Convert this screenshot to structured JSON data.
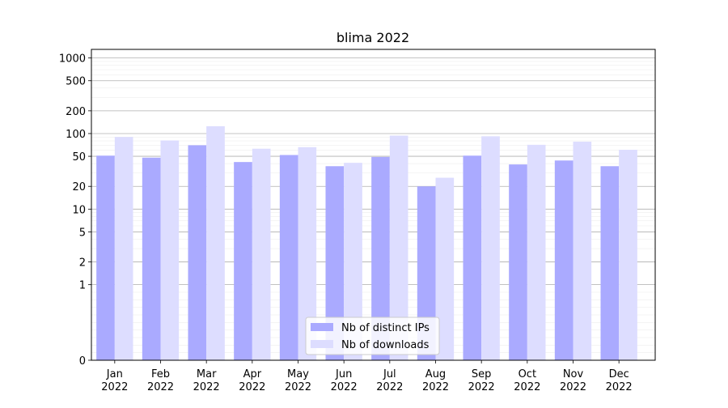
{
  "chart_data": {
    "type": "bar",
    "title": "blima 2022",
    "xlabel": "",
    "ylabel": "",
    "y_scale": "symlog",
    "ylim": [
      0,
      1300
    ],
    "y_ticks": [
      0,
      1,
      2,
      5,
      10,
      20,
      50,
      100,
      200,
      500,
      1000
    ],
    "y_tick_labels": [
      "0",
      "1",
      "2",
      "5",
      "10",
      "20",
      "50",
      "100",
      "200",
      "500",
      "1000"
    ],
    "grid": true,
    "legend_position": "bottom-center",
    "categories": [
      "Jan\n2022",
      "Feb\n2022",
      "Mar\n2022",
      "Apr\n2022",
      "May\n2022",
      "Jun\n2022",
      "Jul\n2022",
      "Aug\n2022",
      "Sep\n2022",
      "Oct\n2022",
      "Nov\n2022",
      "Dec\n2022"
    ],
    "series": [
      {
        "name": "Nb of distinct IPs",
        "color": "#aaaaff",
        "values": [
          51,
          48,
          70,
          42,
          52,
          37,
          49,
          20,
          51,
          39,
          44,
          37
        ]
      },
      {
        "name": "Nb of downloads",
        "color": "#ddddff",
        "values": [
          90,
          81,
          125,
          63,
          66,
          41,
          94,
          26,
          92,
          71,
          78,
          61
        ]
      }
    ]
  }
}
